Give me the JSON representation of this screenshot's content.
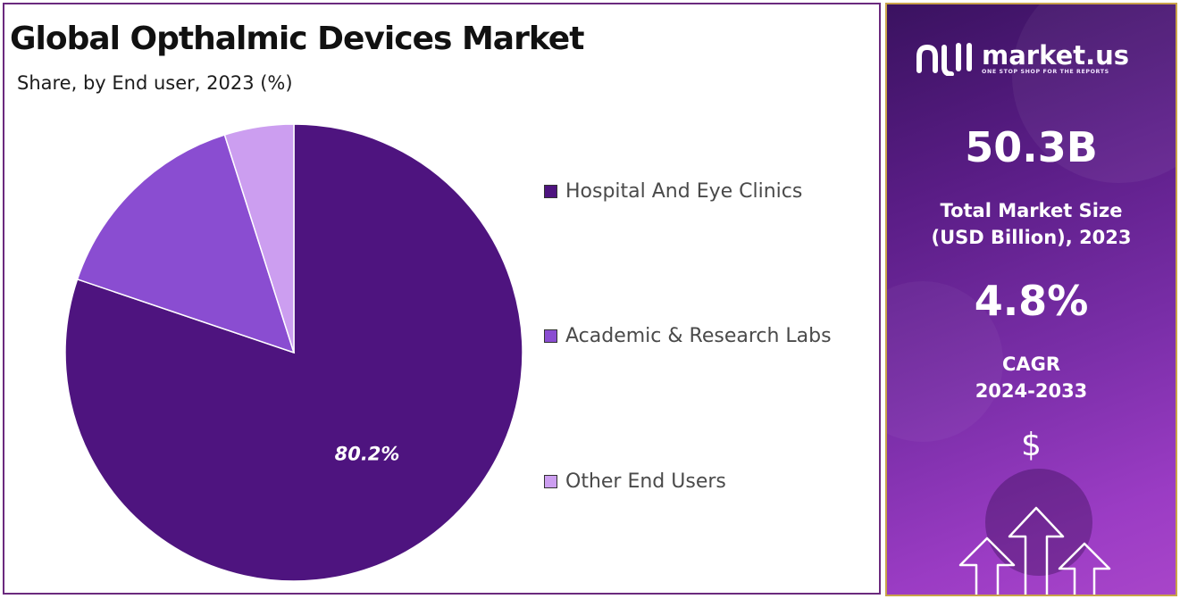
{
  "title": "Global Opthalmic Devices Market",
  "subtitle": "Share, by End user, 2023 (%)",
  "chart_data": {
    "type": "pie",
    "title": "Global Opthalmic Devices Market",
    "subtitle": "Share, by End user, 2023 (%)",
    "categories": [
      "Hospital And Eye Clinics",
      "Academic & Research Labs",
      "Other End Users"
    ],
    "values": [
      80.2,
      14.9,
      4.9
    ],
    "colors": [
      "#4e147f",
      "#8a4dd1",
      "#cc9ef0"
    ],
    "data_labels": [
      "80.2%",
      "",
      ""
    ],
    "start_angle_deg": 0,
    "direction": "clockwise",
    "legend_position": "right"
  },
  "legend": {
    "items": [
      {
        "label": "Hospital And Eye Clinics",
        "color": "#4e147f"
      },
      {
        "label": "Academic & Research Labs",
        "color": "#8a4dd1"
      },
      {
        "label": "Other End Users",
        "color": "#cc9ef0"
      }
    ]
  },
  "sidebar": {
    "brand_name": "market.us",
    "brand_tagline": "ONE STOP SHOP FOR THE REPORTS",
    "market_size_value": "50.3B",
    "market_size_label_line1": "Total Market Size",
    "market_size_label_line2": "(USD Billion), 2023",
    "cagr_value": "4.8%",
    "cagr_label_line1": "CAGR",
    "cagr_label_line2": "2024-2033",
    "currency_symbol": "$",
    "logo_icon": "market-us-logo-icon",
    "currency_icon": "dollar-icon",
    "arrows_icon": "growth-arrows-icon",
    "accent_color": "#c9a24a",
    "panel_color": "#7a2ea8"
  }
}
